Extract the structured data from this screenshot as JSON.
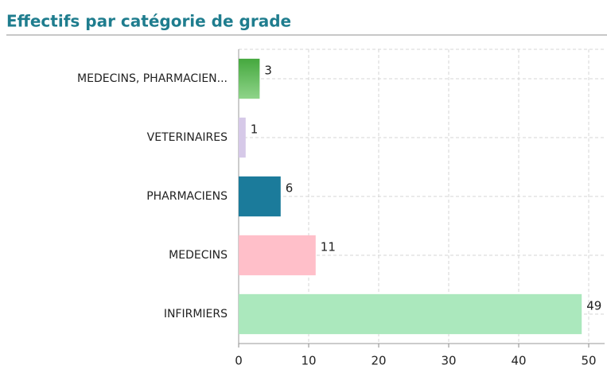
{
  "chart_data": {
    "type": "bar",
    "orientation": "horizontal",
    "title": "Effectifs par catégorie de grade",
    "categories": [
      "MEDECINS, PHARMACIEN...",
      "VETERINAIRES",
      "PHARMACIENS",
      "MEDECINS",
      "INFIRMIERS"
    ],
    "values": [
      3,
      1,
      6,
      11,
      49
    ],
    "colors": [
      "#4fae47",
      "#d6c9e8",
      "#1b7b9b",
      "#ffbfc9",
      "#abe8bd"
    ],
    "xlim": [
      0,
      50
    ],
    "xticks": [
      0,
      10,
      20,
      30,
      40,
      50
    ],
    "grid": true
  }
}
